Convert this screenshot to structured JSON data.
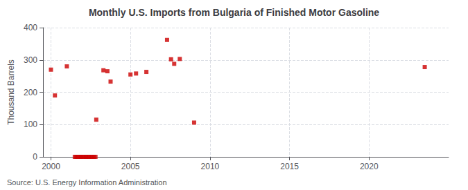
{
  "chart_data": {
    "type": "scatter",
    "title": "Monthly U.S. Imports from Bulgaria of Finished Motor Gasoline",
    "ylabel": "Thousand Barrels",
    "annotation": "Source: U.S. Energy Information Administration",
    "x": [
      2000.0,
      2000.25,
      2001.0,
      2001.5,
      2001.6,
      2001.7,
      2001.8,
      2001.9,
      2002.0,
      2002.1,
      2002.2,
      2002.3,
      2002.4,
      2002.5,
      2002.6,
      2002.7,
      2002.8,
      2002.85,
      2003.3,
      2003.55,
      2003.75,
      2005.0,
      2005.35,
      2006.0,
      2007.3,
      2007.55,
      2007.75,
      2008.1,
      2009.0,
      2023.5
    ],
    "values": [
      270,
      190,
      280,
      0,
      0,
      0,
      0,
      0,
      0,
      0,
      0,
      0,
      0,
      0,
      0,
      0,
      0,
      115,
      268,
      265,
      233,
      255,
      258,
      263,
      362,
      302,
      288,
      303,
      106,
      278
    ],
    "color": "#cc0000",
    "marker": "square",
    "xlim": [
      1999.5,
      2025.0
    ],
    "xticks": [
      2000,
      2005,
      2010,
      2015,
      2020
    ],
    "ylim": [
      0,
      400
    ],
    "yticks": [
      0,
      100,
      200,
      300,
      400
    ],
    "grid": true
  }
}
